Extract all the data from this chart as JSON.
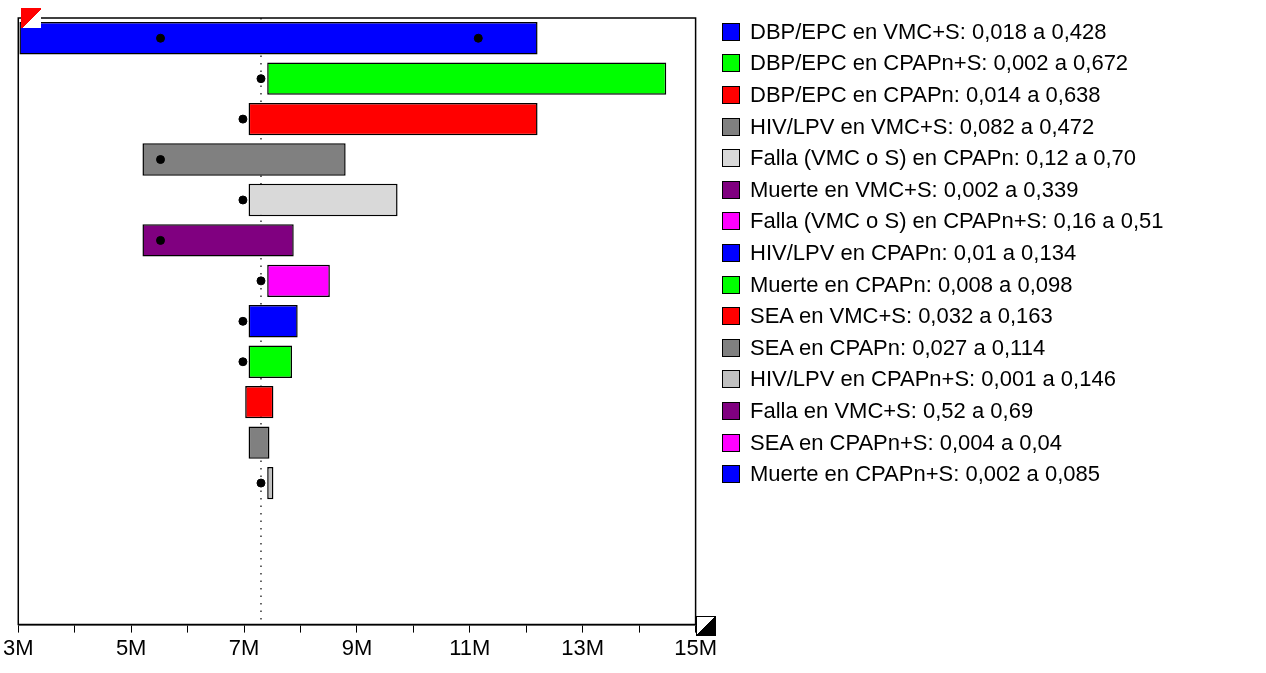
{
  "chart_data": {
    "type": "bar",
    "orientation": "horizontal",
    "grid": false,
    "legend": "right",
    "categories": [
      null,
      null,
      null,
      null,
      null,
      null,
      null,
      null,
      null,
      null,
      null,
      null,
      null,
      null,
      null
    ],
    "xlim": [
      3,
      15
    ],
    "xticks": [
      {
        "value": 3,
        "label": "3M"
      },
      {
        "value": 4,
        "label": null
      },
      {
        "value": 5,
        "label": "5M"
      },
      {
        "value": 6,
        "label": null
      },
      {
        "value": 7,
        "label": "7M"
      },
      {
        "value": 8,
        "label": null
      },
      {
        "value": 9,
        "label": "9M"
      },
      {
        "value": 10,
        "label": null
      },
      {
        "value": 11,
        "label": "11M"
      },
      {
        "value": 12,
        "label": null
      },
      {
        "value": 13,
        "label": "13M"
      },
      {
        "value": 14,
        "label": null
      },
      {
        "value": 15,
        "label": "15M"
      }
    ],
    "tick_labels": "x",
    "ref_lines": [
      {
        "axis": "x",
        "value": 7.3,
        "line_style": "dotted",
        "color": "#000000"
      }
    ],
    "series": [
      {
        "name": "DBP/EPC en VMC+S: 0,018 a 0,428",
        "color": "#0000ff",
        "base": [
          3.02,
          null,
          null,
          null,
          null,
          null,
          null,
          null,
          null,
          null,
          null,
          null,
          null,
          null,
          null
        ],
        "values": [
          9.18,
          null,
          null,
          null,
          null,
          null,
          null,
          null,
          null,
          null,
          null,
          null,
          null,
          null,
          null
        ]
      },
      {
        "name": "DBP/EPC en CPAPn+S: 0,002 a 0,672",
        "color": "#00ff00",
        "base": [
          null,
          7.41,
          null,
          null,
          null,
          null,
          null,
          null,
          null,
          null,
          null,
          null,
          null,
          null,
          null
        ],
        "values": [
          null,
          7.07,
          null,
          null,
          null,
          null,
          null,
          null,
          null,
          null,
          null,
          null,
          null,
          null,
          null
        ]
      },
      {
        "name": "DBP/EPC en CPAPn: 0,014 a 0,638",
        "color": "#ff0000",
        "base": [
          null,
          null,
          7.08,
          null,
          null,
          null,
          null,
          null,
          null,
          null,
          null,
          null,
          null,
          null,
          null
        ],
        "values": [
          null,
          null,
          5.12,
          null,
          null,
          null,
          null,
          null,
          null,
          null,
          null,
          null,
          null,
          null,
          null
        ]
      },
      {
        "name": "HIV/LPV en VMC+S: 0,082 a 0,472",
        "color": "#808080",
        "base": [
          null,
          null,
          null,
          5.2,
          null,
          null,
          null,
          null,
          null,
          null,
          null,
          null,
          null,
          null,
          null
        ],
        "values": [
          null,
          null,
          null,
          3.6,
          null,
          null,
          null,
          null,
          null,
          null,
          null,
          null,
          null,
          null,
          null
        ]
      },
      {
        "name": "Falla (VMC o S) en CPAPn: 0,12 a 0,70",
        "color": "#d9d9d9",
        "base": [
          null,
          null,
          null,
          null,
          7.08,
          null,
          null,
          null,
          null,
          null,
          null,
          null,
          null,
          null,
          null
        ],
        "values": [
          null,
          null,
          null,
          null,
          2.64,
          null,
          null,
          null,
          null,
          null,
          null,
          null,
          null,
          null,
          null
        ]
      },
      {
        "name": "Muerte en VMC+S: 0,002 a 0,339",
        "color": "#800080",
        "base": [
          null,
          null,
          null,
          null,
          null,
          5.2,
          null,
          null,
          null,
          null,
          null,
          null,
          null,
          null,
          null
        ],
        "values": [
          null,
          null,
          null,
          null,
          null,
          2.68,
          null,
          null,
          null,
          null,
          null,
          null,
          null,
          null,
          null
        ]
      },
      {
        "name": "Falla (VMC o S) en CPAPn+S: 0,16 a 0,51",
        "color": "#ff00ff",
        "base": [
          null,
          null,
          null,
          null,
          null,
          null,
          7.41,
          null,
          null,
          null,
          null,
          null,
          null,
          null,
          null
        ],
        "values": [
          null,
          null,
          null,
          null,
          null,
          null,
          1.11,
          null,
          null,
          null,
          null,
          null,
          null,
          null,
          null
        ]
      },
      {
        "name": "HIV/LPV en CPAPn: 0,01 a 0,134",
        "color": "#0000ff",
        "base": [
          null,
          null,
          null,
          null,
          null,
          null,
          null,
          7.08,
          null,
          null,
          null,
          null,
          null,
          null,
          null
        ],
        "values": [
          null,
          null,
          null,
          null,
          null,
          null,
          null,
          0.87,
          null,
          null,
          null,
          null,
          null,
          null,
          null
        ]
      },
      {
        "name": "Muerte en CPAPn: 0,008 a 0,098",
        "color": "#00ff00",
        "base": [
          null,
          null,
          null,
          null,
          null,
          null,
          null,
          null,
          7.08,
          null,
          null,
          null,
          null,
          null,
          null
        ],
        "values": [
          null,
          null,
          null,
          null,
          null,
          null,
          null,
          null,
          0.77,
          null,
          null,
          null,
          null,
          null,
          null
        ]
      },
      {
        "name": "SEA en VMC+S: 0,032 a 0,163",
        "color": "#ff0000",
        "base": [
          null,
          null,
          null,
          null,
          null,
          null,
          null,
          null,
          null,
          7.02,
          null,
          null,
          null,
          null,
          null
        ],
        "values": [
          null,
          null,
          null,
          null,
          null,
          null,
          null,
          null,
          null,
          0.5,
          null,
          null,
          null,
          null,
          null
        ]
      },
      {
        "name": "SEA en CPAPn: 0,027 a 0,114",
        "color": "#808080",
        "base": [
          null,
          null,
          null,
          null,
          null,
          null,
          null,
          null,
          null,
          null,
          7.08,
          null,
          null,
          null,
          null
        ],
        "values": [
          null,
          null,
          null,
          null,
          null,
          null,
          null,
          null,
          null,
          null,
          0.37,
          null,
          null,
          null,
          null
        ]
      },
      {
        "name": "HIV/LPV en CPAPn+S: 0,001 a 0,146",
        "color": "#c0c0c0",
        "base": [
          null,
          null,
          null,
          null,
          null,
          null,
          null,
          null,
          null,
          null,
          null,
          7.41,
          null,
          null,
          null
        ],
        "values": [
          null,
          null,
          null,
          null,
          null,
          null,
          null,
          null,
          null,
          null,
          null,
          0.11,
          null,
          null,
          null
        ]
      },
      {
        "name": "Falla en VMC+S: 0,52 a 0,69",
        "color": "#800080",
        "values": [
          null,
          null,
          null,
          null,
          null,
          null,
          null,
          null,
          null,
          null,
          null,
          null,
          null,
          null,
          null
        ]
      },
      {
        "name": "SEA en CPAPn+S: 0,004 a 0,04",
        "color": "#ff00ff",
        "values": [
          null,
          null,
          null,
          null,
          null,
          null,
          null,
          null,
          null,
          null,
          null,
          null,
          null,
          null,
          null
        ]
      },
      {
        "name": "Muerte en CPAPn+S: 0,002 a 0,085",
        "color": "#0000ff",
        "values": [
          null,
          null,
          null,
          null,
          null,
          null,
          null,
          null,
          null,
          null,
          null,
          null,
          null,
          null,
          null
        ]
      },
      {
        "type": "scatter",
        "color": "#000000",
        "marker": "circle",
        "values": [
          5.52,
          7.3,
          6.98,
          5.52,
          6.98,
          5.52,
          7.3,
          6.98,
          6.98,
          null,
          null,
          7.3,
          null,
          null,
          null
        ]
      },
      {
        "type": "scatter",
        "color": "#000000",
        "marker": "circle",
        "values": [
          11.15,
          null,
          null,
          null,
          null,
          null,
          null,
          null,
          null,
          null,
          null,
          null,
          null,
          null,
          null
        ]
      }
    ]
  }
}
